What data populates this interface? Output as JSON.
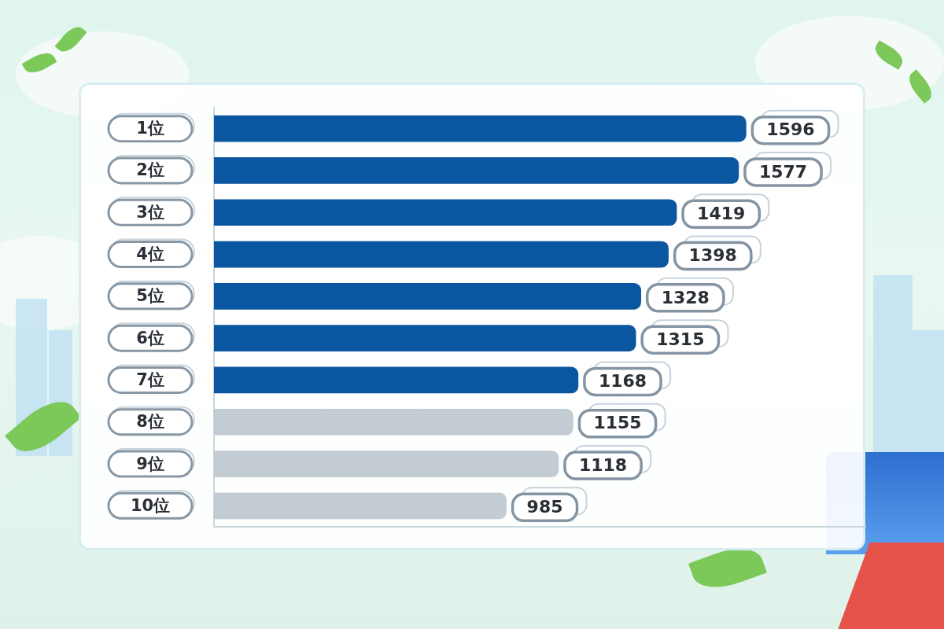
{
  "chart_data": {
    "type": "bar",
    "orientation": "horizontal",
    "categories": [
      "1位",
      "2位",
      "3位",
      "4位",
      "5位",
      "6位",
      "7位",
      "8位",
      "9位",
      "10位"
    ],
    "values": [
      1596,
      1577,
      1419,
      1398,
      1328,
      1315,
      1168,
      1155,
      1118,
      985
    ],
    "colors": [
      "#0b56a0",
      "#0b56a0",
      "#0b56a0",
      "#0b56a0",
      "#0b56a0",
      "#0b56a0",
      "#0b56a0",
      "#c3cbd3",
      "#c3cbd3",
      "#c3cbd3"
    ],
    "xlim": [
      240,
      1900
    ],
    "grid": false,
    "data_labels": true,
    "tick_labels": "y"
  }
}
